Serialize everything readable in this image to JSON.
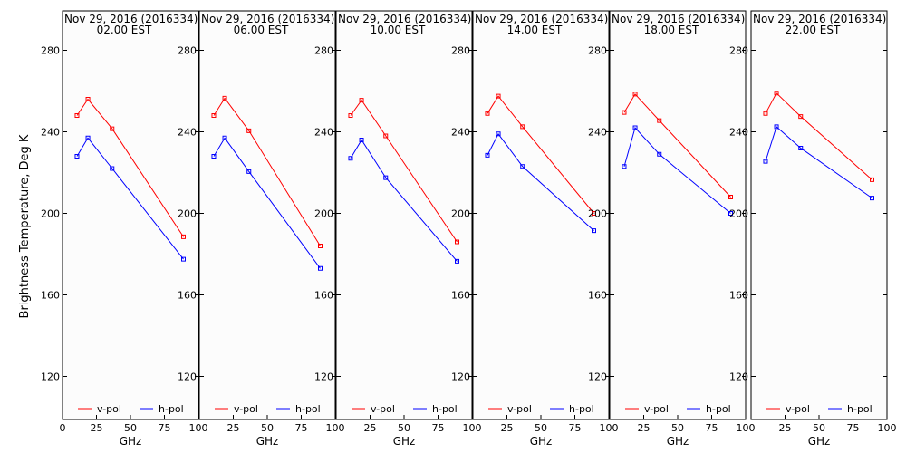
{
  "ylabel": "Brightness Temperature, Deg K",
  "chart_data": {
    "type": "line",
    "xlabel": "GHz",
    "ylabel": "Brightness Temperature, Deg K",
    "xlim": [
      0,
      100
    ],
    "ylim": [
      100,
      295
    ],
    "xticks": [
      "0",
      "25",
      "50",
      "75",
      "100"
    ],
    "yticks": [
      "120",
      "160",
      "200",
      "240",
      "280"
    ],
    "x": [
      10.65,
      18.7,
      36.5,
      89.0
    ],
    "legend": [
      "v-pol",
      "h-pol"
    ],
    "colors": {
      "v-pol": "#ff0000",
      "h-pol": "#0000ff"
    },
    "panels": [
      {
        "title_line1": "Nov 29, 2016 (2016334)",
        "title_line2": "02.00 EST",
        "series": [
          {
            "name": "v-pol",
            "values": [
              248,
              256,
              241.5,
              188.5
            ]
          },
          {
            "name": "h-pol",
            "values": [
              228,
              237,
              222,
              177.5
            ]
          }
        ]
      },
      {
        "title_line1": "Nov 29, 2016 (2016334)",
        "title_line2": "06.00 EST",
        "series": [
          {
            "name": "v-pol",
            "values": [
              248,
              256.5,
              240.5,
              184
            ]
          },
          {
            "name": "h-pol",
            "values": [
              228,
              237,
              220.5,
              173
            ]
          }
        ]
      },
      {
        "title_line1": "Nov 29, 2016 (2016334)",
        "title_line2": "10.00 EST",
        "series": [
          {
            "name": "v-pol",
            "values": [
              248,
              255.5,
              238,
              186
            ]
          },
          {
            "name": "h-pol",
            "values": [
              227,
              236,
              217.5,
              176.5
            ]
          }
        ]
      },
      {
        "title_line1": "Nov 29, 2016 (2016334)",
        "title_line2": "14.00 EST",
        "series": [
          {
            "name": "v-pol",
            "values": [
              249,
              257.5,
              242.5,
              200
            ]
          },
          {
            "name": "h-pol",
            "values": [
              228.5,
              239,
              223,
              191.5
            ]
          }
        ]
      },
      {
        "title_line1": "Nov 29, 2016 (2016334)",
        "title_line2": "18.00 EST",
        "series": [
          {
            "name": "v-pol",
            "values": [
              249.5,
              258.5,
              245.5,
              208
            ]
          },
          {
            "name": "h-pol",
            "values": [
              223,
              242,
              229,
              200
            ]
          }
        ]
      },
      {
        "title_line1": "Nov 29, 2016 (2016334)",
        "title_line2": "22.00 EST",
        "series": [
          {
            "name": "v-pol",
            "values": [
              249,
              259,
              247.5,
              216.5
            ]
          },
          {
            "name": "h-pol",
            "values": [
              225.5,
              242.5,
              232,
              207.5
            ]
          }
        ]
      }
    ]
  }
}
